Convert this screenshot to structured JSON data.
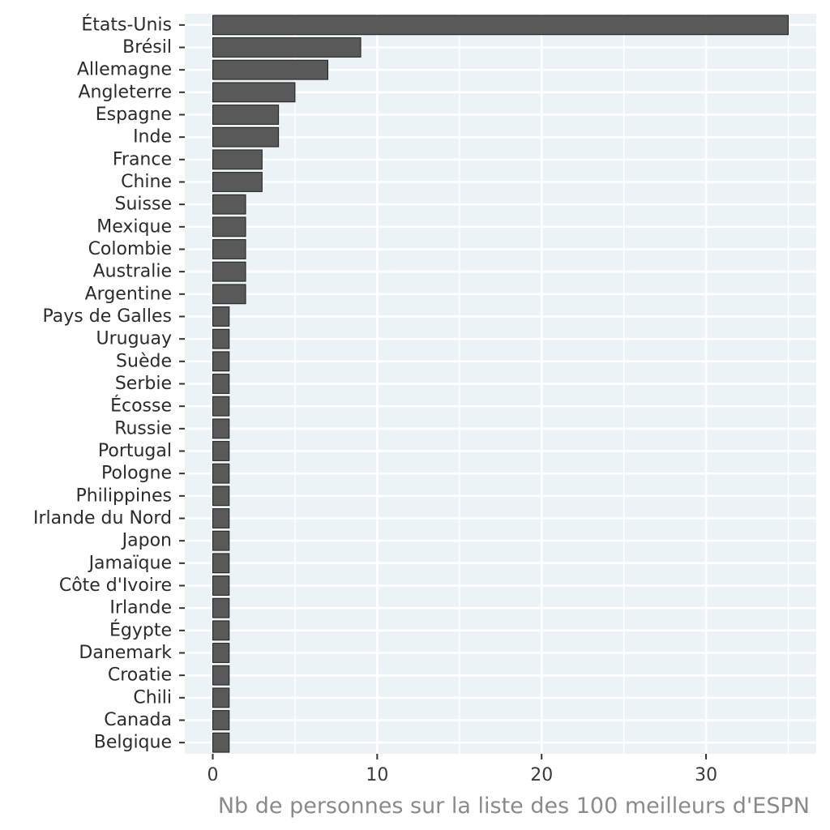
{
  "chart_data": {
    "type": "bar",
    "orientation": "horizontal",
    "categories": [
      "États-Unis",
      "Brésil",
      "Allemagne",
      "Angleterre",
      "Espagne",
      "Inde",
      "France",
      "Chine",
      "Suisse",
      "Mexique",
      "Colombie",
      "Australie",
      "Argentine",
      "Pays de Galles",
      "Uruguay",
      "Suède",
      "Serbie",
      "Écosse",
      "Russie",
      "Portugal",
      "Pologne",
      "Philippines",
      "Irlande du Nord",
      "Japon",
      "Jamaïque",
      "Côte d'Ivoire",
      "Irlande",
      "Égypte",
      "Danemark",
      "Croatie",
      "Chili",
      "Canada",
      "Belgique"
    ],
    "values": [
      35,
      9,
      7,
      5,
      4,
      4,
      3,
      3,
      2,
      2,
      2,
      2,
      2,
      1,
      1,
      1,
      1,
      1,
      1,
      1,
      1,
      1,
      1,
      1,
      1,
      1,
      1,
      1,
      1,
      1,
      1,
      1,
      1
    ],
    "title": "",
    "xlabel": "Nb de personnes sur la liste des 100 meilleurs d'ESPN",
    "ylabel": "",
    "xlim": [
      -1.7,
      36.7
    ],
    "x_ticks": [
      0,
      10,
      20,
      30
    ],
    "grid": true,
    "colors": {
      "panel_background": "#ebf3f6",
      "grid_line": "#ffffff",
      "bar_fill": "#595959",
      "bar_outline": "#1e1e1e",
      "tick_mark": "#333333"
    }
  }
}
